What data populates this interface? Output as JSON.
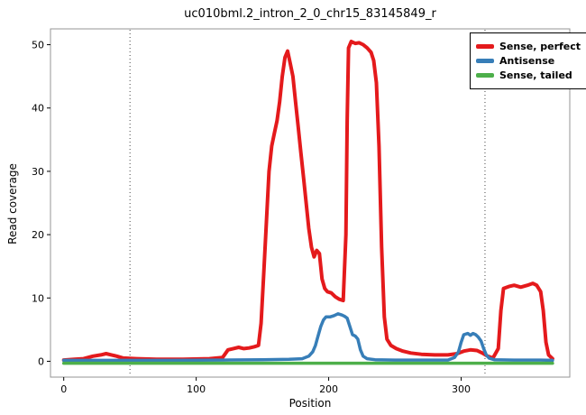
{
  "figure": {
    "title": "uc010bml.2_intron_2_0_chr15_83145849_r",
    "xlabel": "Position",
    "ylabel": "Read coverage"
  },
  "chart_data": {
    "type": "line",
    "title": "uc010bml.2_intron_2_0_chr15_83145849_r",
    "xlabel": "Position",
    "ylabel": "Read coverage",
    "xlim": [
      -10,
      382
    ],
    "ylim": [
      -2.5,
      52.5
    ],
    "x_ticks": [
      0,
      100,
      200,
      300
    ],
    "y_ticks": [
      0,
      10,
      20,
      30,
      40,
      50
    ],
    "vlines": [
      50,
      318
    ],
    "grid": false,
    "legend_position": "top-right",
    "panel_border_color": "#969696",
    "vline_color": "#444444",
    "series": [
      {
        "name": "Sense, perfect",
        "color": "#E41A1C",
        "width": 4,
        "points": [
          [
            0,
            0.2
          ],
          [
            8,
            0.3
          ],
          [
            15,
            0.4
          ],
          [
            22,
            0.8
          ],
          [
            28,
            1.0
          ],
          [
            32,
            1.2
          ],
          [
            36,
            1.0
          ],
          [
            40,
            0.8
          ],
          [
            45,
            0.5
          ],
          [
            55,
            0.4
          ],
          [
            70,
            0.3
          ],
          [
            90,
            0.3
          ],
          [
            110,
            0.4
          ],
          [
            120,
            0.6
          ],
          [
            124,
            1.8
          ],
          [
            128,
            2.0
          ],
          [
            132,
            2.2
          ],
          [
            136,
            2.0
          ],
          [
            140,
            2.1
          ],
          [
            144,
            2.3
          ],
          [
            147,
            2.5
          ],
          [
            149,
            6
          ],
          [
            151,
            14
          ],
          [
            153,
            22
          ],
          [
            155,
            30
          ],
          [
            157,
            34
          ],
          [
            159,
            36
          ],
          [
            161,
            38
          ],
          [
            163,
            41
          ],
          [
            165,
            45
          ],
          [
            167,
            48
          ],
          [
            169,
            49
          ],
          [
            171,
            47
          ],
          [
            173,
            45
          ],
          [
            175,
            41
          ],
          [
            177,
            37
          ],
          [
            179,
            33
          ],
          [
            181,
            29
          ],
          [
            183,
            25
          ],
          [
            185,
            21
          ],
          [
            187,
            18
          ],
          [
            189,
            16.5
          ],
          [
            191,
            17.5
          ],
          [
            193,
            17
          ],
          [
            195,
            13
          ],
          [
            197,
            11.5
          ],
          [
            199,
            11
          ],
          [
            202,
            10.8
          ],
          [
            205,
            10.2
          ],
          [
            208,
            9.8
          ],
          [
            211,
            9.6
          ],
          [
            213,
            20
          ],
          [
            214,
            38
          ],
          [
            215,
            49.5
          ],
          [
            217,
            50.5
          ],
          [
            220,
            50.2
          ],
          [
            223,
            50.3
          ],
          [
            226,
            50
          ],
          [
            229,
            49.5
          ],
          [
            232,
            48.8
          ],
          [
            234,
            47.5
          ],
          [
            236,
            44
          ],
          [
            238,
            34
          ],
          [
            240,
            18
          ],
          [
            242,
            7
          ],
          [
            244,
            3.5
          ],
          [
            247,
            2.5
          ],
          [
            251,
            2.0
          ],
          [
            256,
            1.6
          ],
          [
            262,
            1.3
          ],
          [
            270,
            1.1
          ],
          [
            280,
            1.0
          ],
          [
            290,
            1.0
          ],
          [
            297,
            1.2
          ],
          [
            302,
            1.6
          ],
          [
            307,
            1.8
          ],
          [
            312,
            1.7
          ],
          [
            316,
            1.3
          ],
          [
            320,
            0.8
          ],
          [
            324,
            0.5
          ],
          [
            328,
            2
          ],
          [
            330,
            8
          ],
          [
            332,
            11.5
          ],
          [
            336,
            11.8
          ],
          [
            340,
            12
          ],
          [
            345,
            11.7
          ],
          [
            350,
            12
          ],
          [
            354,
            12.3
          ],
          [
            357,
            12
          ],
          [
            360,
            11
          ],
          [
            362,
            8
          ],
          [
            364,
            3
          ],
          [
            366,
            1
          ],
          [
            369,
            0.4
          ]
        ]
      },
      {
        "name": "Antisense",
        "color": "#377EB8",
        "width": 3.5,
        "points": [
          [
            0,
            0.15
          ],
          [
            40,
            0.15
          ],
          [
            80,
            0.15
          ],
          [
            120,
            0.2
          ],
          [
            150,
            0.25
          ],
          [
            170,
            0.3
          ],
          [
            180,
            0.4
          ],
          [
            185,
            0.8
          ],
          [
            188,
            1.5
          ],
          [
            190,
            2.5
          ],
          [
            192,
            4
          ],
          [
            194,
            5.5
          ],
          [
            196,
            6.5
          ],
          [
            198,
            7
          ],
          [
            201,
            7
          ],
          [
            204,
            7.2
          ],
          [
            207,
            7.5
          ],
          [
            210,
            7.3
          ],
          [
            212,
            7.1
          ],
          [
            214,
            6.8
          ],
          [
            216,
            5.5
          ],
          [
            218,
            4.2
          ],
          [
            220,
            4
          ],
          [
            222,
            3.5
          ],
          [
            224,
            1.8
          ],
          [
            226,
            0.8
          ],
          [
            229,
            0.4
          ],
          [
            235,
            0.25
          ],
          [
            250,
            0.2
          ],
          [
            270,
            0.2
          ],
          [
            290,
            0.2
          ],
          [
            295,
            0.6
          ],
          [
            298,
            1.5
          ],
          [
            300,
            3
          ],
          [
            302,
            4.2
          ],
          [
            305,
            4.4
          ],
          [
            307,
            4.1
          ],
          [
            309,
            4.4
          ],
          [
            311,
            4.2
          ],
          [
            313,
            3.8
          ],
          [
            315,
            3.2
          ],
          [
            317,
            2
          ],
          [
            319,
            1
          ],
          [
            321,
            0.5
          ],
          [
            325,
            0.25
          ],
          [
            340,
            0.2
          ],
          [
            360,
            0.2
          ],
          [
            369,
            0.15
          ]
        ]
      },
      {
        "name": "Sense, tailed",
        "color": "#4DAF4A",
        "width": 3.5,
        "points": [
          [
            0,
            -0.3
          ],
          [
            60,
            -0.3
          ],
          [
            120,
            -0.3
          ],
          [
            180,
            -0.3
          ],
          [
            240,
            -0.3
          ],
          [
            300,
            -0.3
          ],
          [
            369,
            -0.3
          ]
        ]
      }
    ]
  }
}
